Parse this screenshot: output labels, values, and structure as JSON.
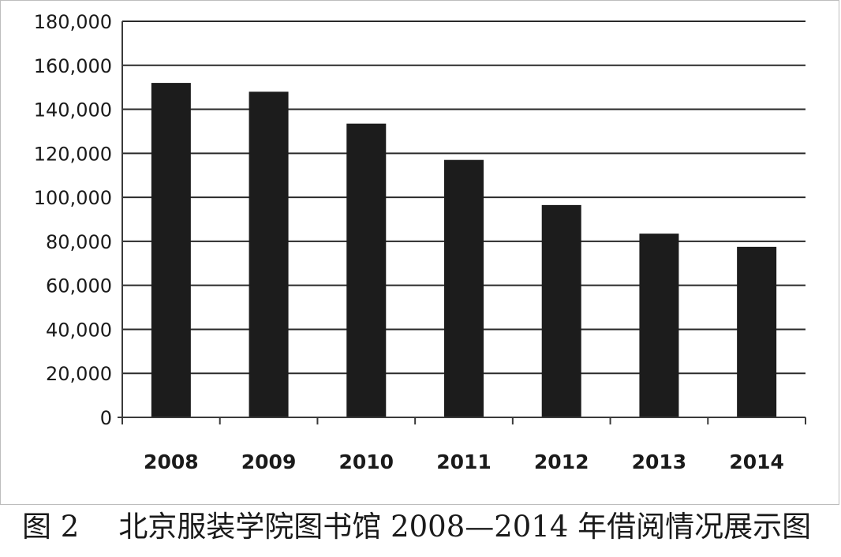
{
  "chart_data": {
    "type": "bar",
    "categories": [
      "2008",
      "2009",
      "2010",
      "2011",
      "2012",
      "2013",
      "2014"
    ],
    "values": [
      152000,
      148000,
      133500,
      117000,
      96500,
      83500,
      77500
    ],
    "ylim": [
      0,
      180000
    ],
    "yticks": [
      0,
      20000,
      40000,
      60000,
      80000,
      100000,
      120000,
      140000,
      160000,
      180000
    ],
    "ytick_labels": [
      "0",
      "20,000",
      "40,000",
      "60,000",
      "80,000",
      "100,000",
      "120,000",
      "140,000",
      "160,000",
      "180,000"
    ],
    "grid": true,
    "bar_color": "#1c1c1c"
  },
  "caption": {
    "figure_number": "图 2",
    "text": "北京服装学院图书馆 2008—2014 年借阅情况展示图"
  }
}
